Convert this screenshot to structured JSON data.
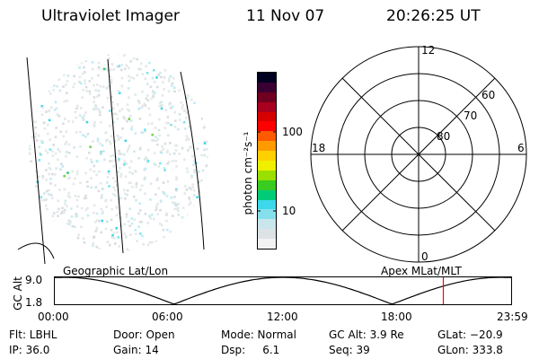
{
  "header": {
    "instrument": "Ultraviolet Imager",
    "date": "11 Nov 07",
    "time": "20:26:25 UT"
  },
  "image_panel": {
    "scatter_seed": 7
  },
  "colorbar": {
    "unit": "photon cm⁻²s⁻¹",
    "ticks": [
      "100",
      "10"
    ],
    "colors": [
      "#f2f2f2",
      "#dde3e5",
      "#c8e6ec",
      "#86e0ec",
      "#3dd8ea",
      "#00cc77",
      "#3acc20",
      "#9adf00",
      "#eef000",
      "#ffd000",
      "#ff9a00",
      "#ff5a00",
      "#ff0000",
      "#d60000",
      "#a8001e",
      "#70001f",
      "#3b0033",
      "#000020"
    ]
  },
  "polar_plot": {
    "labels": {
      "top": "12",
      "left": "18",
      "right": "6",
      "bottom": "0"
    },
    "ring_labels": [
      "60",
      "70",
      "80"
    ]
  },
  "timeline": {
    "left_title": "Geographic Lat/Lon",
    "right_title": "Apex MLat/MLT",
    "yaxis_label": "GC Alt",
    "y_ticks": [
      "9.0",
      "1.8"
    ],
    "x_ticks": [
      "00:00",
      "06:00",
      "12:00",
      "18:00",
      "23:59"
    ],
    "marker_fraction": 0.85,
    "marker_color": "#ff0000"
  },
  "info": {
    "row1": [
      "Flt: LBHL",
      "Door: Open",
      "Mode: Normal",
      "GC Alt: 3.9 Re",
      "GLat: −20.9"
    ],
    "row2": [
      "IP: 36.0",
      "Gain: 14",
      "Dsp:     6.1",
      "Seq: 39",
      "GLon: 333.8"
    ]
  }
}
